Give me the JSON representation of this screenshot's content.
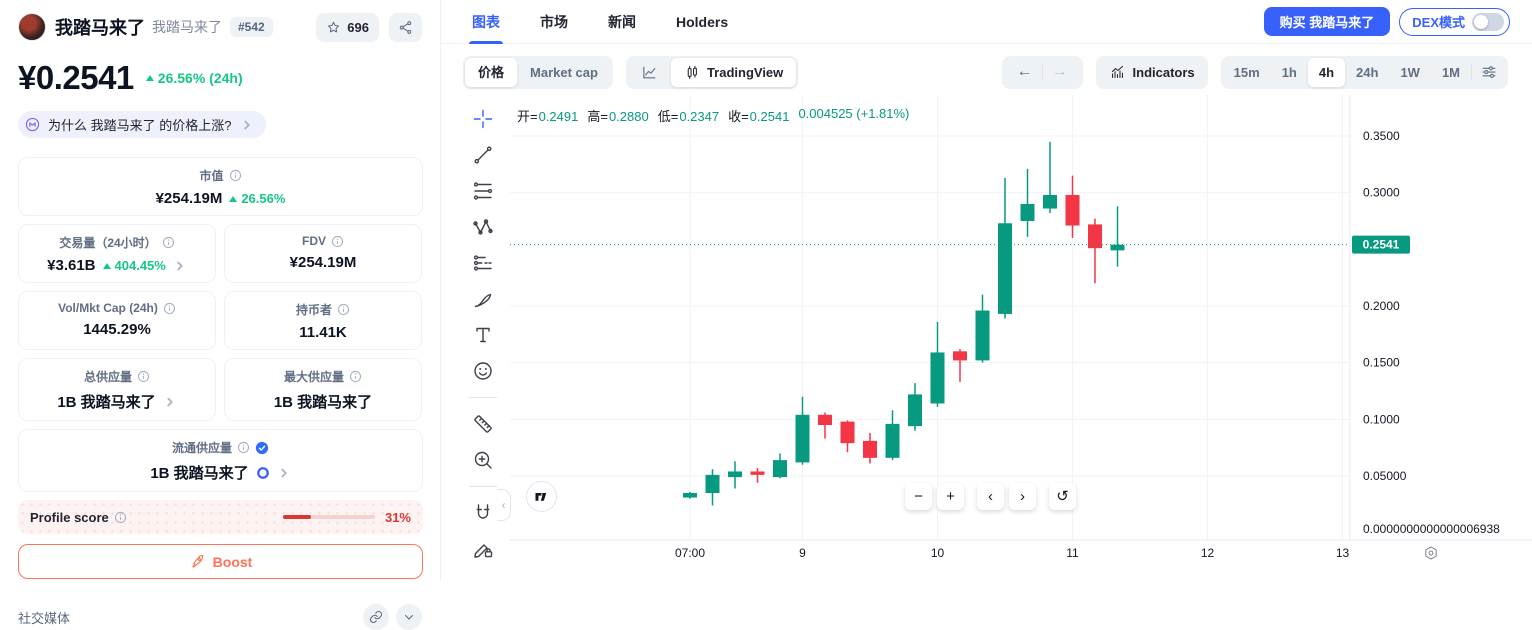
{
  "coin": {
    "name": "我踏马来了",
    "symbol": "我踏马来了",
    "rank": "#542",
    "watchlist_count": "696",
    "price": "¥0.2541",
    "price_change": "26.56% (24h)",
    "why_question": "为什么 我踏马来了 的价格上涨?"
  },
  "stats": {
    "market_cap": {
      "label": "市值",
      "value": "¥254.19M",
      "change": "26.56%"
    },
    "volume_24h": {
      "label": "交易量（24小时）",
      "value": "¥3.61B",
      "change": "404.45%"
    },
    "fdv": {
      "label": "FDV",
      "value": "¥254.19M"
    },
    "vol_mkt_cap": {
      "label": "Vol/Mkt Cap (24h)",
      "value": "1445.29%"
    },
    "holders": {
      "label": "持币者",
      "value": "11.41K"
    },
    "total_supply": {
      "label": "总供应量",
      "value": "1B 我踏马来了"
    },
    "max_supply": {
      "label": "最大供应量",
      "value": "1B 我踏马来了"
    },
    "circulating_supply": {
      "label": "流通供应量",
      "value": "1B 我踏马来了"
    }
  },
  "profile_score": {
    "label": "Profile score",
    "value": "31%",
    "percent": 31
  },
  "boost": {
    "label": "Boost"
  },
  "social": {
    "label": "社交媒体"
  },
  "tabs": [
    {
      "label": "图表"
    },
    {
      "label": "市场"
    },
    {
      "label": "新闻"
    },
    {
      "label": "Holders"
    }
  ],
  "actions": {
    "buy": "购买 我踏马来了",
    "dex_mode": "DEX模式",
    "dex_on": false
  },
  "chart_toolbar": {
    "price_tab": "价格",
    "market_cap_tab": "Market cap",
    "tradingview": "TradingView",
    "indicators": "Indicators",
    "timeframes": [
      "15m",
      "1h",
      "4h",
      "24h",
      "1W",
      "1M"
    ],
    "active_timeframe": "4h"
  },
  "ohlc": {
    "pairs": [
      {
        "k": "开=",
        "v": "0.2491"
      },
      {
        "k": "高=",
        "v": "0.2880"
      },
      {
        "k": "低=",
        "v": "0.2347"
      },
      {
        "k": "收=",
        "v": "0.2541"
      }
    ],
    "change": "0.004525 (+1.81%)"
  },
  "chart_tools": [
    [
      "crosshair",
      "trend-line",
      "fib-retracement",
      "xabcd-pattern",
      "forecast",
      "brush",
      "text",
      "emoji"
    ],
    [
      "ruler",
      "zoom-in"
    ],
    [
      "magnet",
      "draw-lock"
    ]
  ],
  "chart_data": {
    "type": "candlestick",
    "interval": "4h",
    "up_color": "#089981",
    "down_color": "#f23645",
    "grid": true,
    "legend_position": "top-left",
    "ylim": [
      0,
      0.37
    ],
    "y_ticks": [
      {
        "value": 0.35,
        "label": "0.3500"
      },
      {
        "value": 0.3,
        "label": "0.3000"
      },
      {
        "value": 0.2,
        "label": "0.2000"
      },
      {
        "value": 0.15,
        "label": "0.1500"
      },
      {
        "value": 0.1,
        "label": "0.1000"
      },
      {
        "value": 0.05,
        "label": "0.05000"
      }
    ],
    "y_bottom_tick": {
      "value": 0.0033,
      "label": "0.0000000000000006938"
    },
    "x_ticks": [
      {
        "slot": 0,
        "label": "07:00"
      },
      {
        "slot": 5,
        "label": "9"
      },
      {
        "slot": 11,
        "label": "10"
      },
      {
        "slot": 17,
        "label": "11"
      },
      {
        "slot": 23,
        "label": "12"
      },
      {
        "slot": 29,
        "label": "13"
      }
    ],
    "current_price": {
      "value": 0.2541,
      "label": "0.2541"
    },
    "candles": [
      {
        "o": 0.031,
        "h": 0.036,
        "l": 0.03,
        "c": 0.035
      },
      {
        "o": 0.035,
        "h": 0.056,
        "l": 0.024,
        "c": 0.051
      },
      {
        "o": 0.049,
        "h": 0.063,
        "l": 0.039,
        "c": 0.054
      },
      {
        "o": 0.054,
        "h": 0.057,
        "l": 0.044,
        "c": 0.051
      },
      {
        "o": 0.049,
        "h": 0.07,
        "l": 0.048,
        "c": 0.064
      },
      {
        "o": 0.062,
        "h": 0.12,
        "l": 0.06,
        "c": 0.104
      },
      {
        "o": 0.104,
        "h": 0.106,
        "l": 0.083,
        "c": 0.095
      },
      {
        "o": 0.098,
        "h": 0.099,
        "l": 0.071,
        "c": 0.079
      },
      {
        "o": 0.081,
        "h": 0.088,
        "l": 0.061,
        "c": 0.066
      },
      {
        "o": 0.066,
        "h": 0.108,
        "l": 0.064,
        "c": 0.096
      },
      {
        "o": 0.094,
        "h": 0.132,
        "l": 0.09,
        "c": 0.122
      },
      {
        "o": 0.114,
        "h": 0.186,
        "l": 0.111,
        "c": 0.159
      },
      {
        "o": 0.16,
        "h": 0.162,
        "l": 0.133,
        "c": 0.152
      },
      {
        "o": 0.152,
        "h": 0.21,
        "l": 0.15,
        "c": 0.196
      },
      {
        "o": 0.193,
        "h": 0.313,
        "l": 0.189,
        "c": 0.273
      },
      {
        "o": 0.275,
        "h": 0.321,
        "l": 0.261,
        "c": 0.29
      },
      {
        "o": 0.286,
        "h": 0.345,
        "l": 0.282,
        "c": 0.298
      },
      {
        "o": 0.298,
        "h": 0.315,
        "l": 0.26,
        "c": 0.271
      },
      {
        "o": 0.272,
        "h": 0.277,
        "l": 0.22,
        "c": 0.251
      },
      {
        "o": 0.2491,
        "h": 0.288,
        "l": 0.2347,
        "c": 0.2541
      }
    ]
  }
}
